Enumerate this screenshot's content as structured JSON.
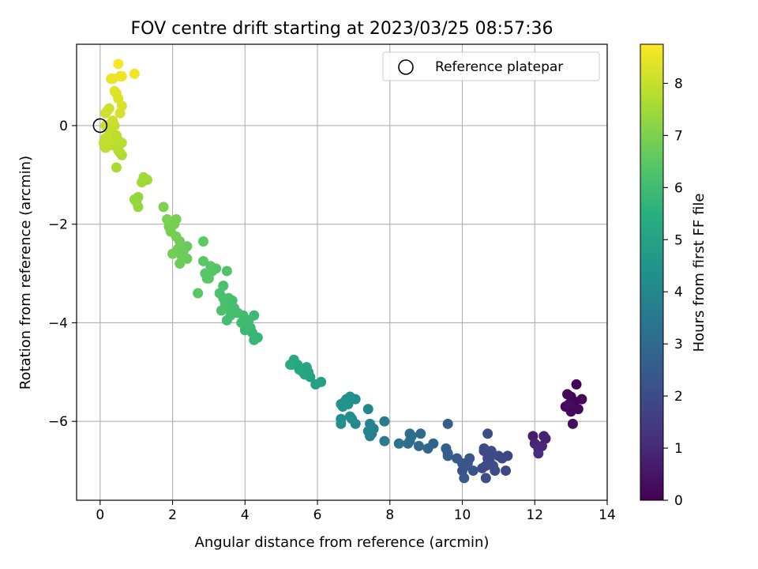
{
  "chart_data": {
    "type": "scatter",
    "title": "FOV centre drift starting at 2023/03/25 08:57:36",
    "xlabel": "Angular distance from reference (arcmin)",
    "ylabel": "Rotation from reference (arcmin)",
    "xlim": [
      -0.65,
      14
    ],
    "ylim": [
      -7.6,
      1.65
    ],
    "xticks": [
      0,
      2,
      4,
      6,
      8,
      10,
      12,
      14
    ],
    "yticks": [
      -6,
      -4,
      -2,
      0
    ],
    "grid": true,
    "legend": {
      "position": "upper right",
      "entries": [
        "Reference platepar"
      ]
    },
    "reference": {
      "x": 0,
      "y": 0,
      "label": "Reference platepar"
    },
    "colorbar": {
      "label": "Hours from first FF file",
      "min": 0,
      "max": 8.75,
      "ticks": [
        0,
        1,
        2,
        3,
        4,
        5,
        6,
        7,
        8
      ],
      "colormap": "viridis"
    },
    "points": [
      {
        "x": 13.0,
        "y": -5.5,
        "t": 0.1
      },
      {
        "x": 12.9,
        "y": -5.45,
        "t": 0.2
      },
      {
        "x": 13.1,
        "y": -5.6,
        "t": 0.1
      },
      {
        "x": 13.15,
        "y": -5.25,
        "t": 0.05
      },
      {
        "x": 13.3,
        "y": -5.55,
        "t": 0.1
      },
      {
        "x": 12.85,
        "y": -5.7,
        "t": 0.2
      },
      {
        "x": 13.0,
        "y": -5.8,
        "t": 0.15
      },
      {
        "x": 13.2,
        "y": -5.75,
        "t": 0.15
      },
      {
        "x": 13.05,
        "y": -6.05,
        "t": 0.3
      },
      {
        "x": 12.95,
        "y": -5.65,
        "t": 0.25
      },
      {
        "x": 11.95,
        "y": -6.3,
        "t": 0.7
      },
      {
        "x": 12.25,
        "y": -6.3,
        "t": 0.8
      },
      {
        "x": 12.0,
        "y": -6.45,
        "t": 0.9
      },
      {
        "x": 12.1,
        "y": -6.55,
        "t": 1.0
      },
      {
        "x": 12.3,
        "y": -6.35,
        "t": 0.85
      },
      {
        "x": 12.1,
        "y": -6.65,
        "t": 1.1
      },
      {
        "x": 12.2,
        "y": -6.5,
        "t": 0.95
      },
      {
        "x": 10.6,
        "y": -6.6,
        "t": 1.8
      },
      {
        "x": 10.7,
        "y": -6.75,
        "t": 1.85
      },
      {
        "x": 10.8,
        "y": -6.65,
        "t": 1.9
      },
      {
        "x": 10.65,
        "y": -6.9,
        "t": 1.9
      },
      {
        "x": 10.9,
        "y": -7.0,
        "t": 2.0
      },
      {
        "x": 11.0,
        "y": -6.7,
        "t": 1.95
      },
      {
        "x": 11.1,
        "y": -6.75,
        "t": 1.9
      },
      {
        "x": 11.2,
        "y": -7.0,
        "t": 1.85
      },
      {
        "x": 11.25,
        "y": -6.7,
        "t": 1.8
      },
      {
        "x": 10.55,
        "y": -6.95,
        "t": 2.0
      },
      {
        "x": 10.65,
        "y": -7.15,
        "t": 2.05
      },
      {
        "x": 10.7,
        "y": -6.25,
        "t": 2.0
      },
      {
        "x": 10.6,
        "y": -6.55,
        "t": 1.95
      },
      {
        "x": 10.75,
        "y": -6.8,
        "t": 2.0
      },
      {
        "x": 10.85,
        "y": -6.9,
        "t": 2.05
      },
      {
        "x": 10.8,
        "y": -6.6,
        "t": 2.0
      },
      {
        "x": 10.0,
        "y": -7.0,
        "t": 2.3
      },
      {
        "x": 10.05,
        "y": -7.15,
        "t": 2.35
      },
      {
        "x": 10.1,
        "y": -6.9,
        "t": 2.3
      },
      {
        "x": 10.2,
        "y": -6.75,
        "t": 2.3
      },
      {
        "x": 10.3,
        "y": -7.0,
        "t": 2.25
      },
      {
        "x": 10.0,
        "y": -6.85,
        "t": 2.3
      },
      {
        "x": 9.85,
        "y": -6.75,
        "t": 2.4
      },
      {
        "x": 10.15,
        "y": -6.85,
        "t": 2.35
      },
      {
        "x": 9.6,
        "y": -6.65,
        "t": 2.6
      },
      {
        "x": 9.55,
        "y": -6.55,
        "t": 2.6
      },
      {
        "x": 9.6,
        "y": -6.7,
        "t": 2.65
      },
      {
        "x": 9.6,
        "y": -6.05,
        "t": 2.7
      },
      {
        "x": 9.2,
        "y": -6.45,
        "t": 2.85
      },
      {
        "x": 9.05,
        "y": -6.55,
        "t": 2.9
      },
      {
        "x": 8.85,
        "y": -6.25,
        "t": 3.0
      },
      {
        "x": 8.8,
        "y": -6.5,
        "t": 3.0
      },
      {
        "x": 8.6,
        "y": -6.3,
        "t": 3.1
      },
      {
        "x": 8.55,
        "y": -6.25,
        "t": 3.15
      },
      {
        "x": 8.5,
        "y": -6.45,
        "t": 3.15
      },
      {
        "x": 8.25,
        "y": -6.45,
        "t": 3.3
      },
      {
        "x": 8.55,
        "y": -6.4,
        "t": 3.2
      },
      {
        "x": 7.85,
        "y": -6.0,
        "t": 3.6
      },
      {
        "x": 7.85,
        "y": -6.4,
        "t": 3.6
      },
      {
        "x": 7.5,
        "y": -6.25,
        "t": 3.8
      },
      {
        "x": 7.4,
        "y": -6.2,
        "t": 3.85
      },
      {
        "x": 7.55,
        "y": -6.15,
        "t": 3.8
      },
      {
        "x": 7.45,
        "y": -6.3,
        "t": 3.8
      },
      {
        "x": 7.4,
        "y": -5.75,
        "t": 3.95
      },
      {
        "x": 7.45,
        "y": -6.05,
        "t": 3.9
      },
      {
        "x": 7.05,
        "y": -6.05,
        "t": 4.1
      },
      {
        "x": 6.95,
        "y": -5.95,
        "t": 4.15
      },
      {
        "x": 6.65,
        "y": -5.95,
        "t": 4.3
      },
      {
        "x": 6.65,
        "y": -6.05,
        "t": 4.3
      },
      {
        "x": 6.9,
        "y": -5.9,
        "t": 4.2
      },
      {
        "x": 7.05,
        "y": -5.55,
        "t": 4.3
      },
      {
        "x": 6.9,
        "y": -5.5,
        "t": 4.35
      },
      {
        "x": 6.85,
        "y": -5.65,
        "t": 4.4
      },
      {
        "x": 6.75,
        "y": -5.6,
        "t": 4.45
      },
      {
        "x": 6.7,
        "y": -5.7,
        "t": 4.5
      },
      {
        "x": 6.8,
        "y": -5.55,
        "t": 4.4
      },
      {
        "x": 6.65,
        "y": -5.65,
        "t": 4.5
      },
      {
        "x": 6.1,
        "y": -5.2,
        "t": 4.9
      },
      {
        "x": 5.95,
        "y": -5.25,
        "t": 4.95
      },
      {
        "x": 5.8,
        "y": -5.1,
        "t": 5.0
      },
      {
        "x": 5.7,
        "y": -4.9,
        "t": 5.1
      },
      {
        "x": 5.6,
        "y": -5.0,
        "t": 5.1
      },
      {
        "x": 5.65,
        "y": -5.05,
        "t": 5.15
      },
      {
        "x": 5.5,
        "y": -4.95,
        "t": 5.2
      },
      {
        "x": 5.35,
        "y": -4.75,
        "t": 5.3
      },
      {
        "x": 5.3,
        "y": -4.85,
        "t": 5.3
      },
      {
        "x": 5.45,
        "y": -4.85,
        "t": 5.25
      },
      {
        "x": 5.25,
        "y": -4.85,
        "t": 5.35
      },
      {
        "x": 5.75,
        "y": -5.0,
        "t": 5.05
      },
      {
        "x": 4.35,
        "y": -4.3,
        "t": 5.75
      },
      {
        "x": 4.25,
        "y": -4.35,
        "t": 5.8
      },
      {
        "x": 4.2,
        "y": -4.2,
        "t": 5.8
      },
      {
        "x": 4.15,
        "y": -4.1,
        "t": 5.85
      },
      {
        "x": 4.25,
        "y": -3.85,
        "t": 5.9
      },
      {
        "x": 4.1,
        "y": -3.95,
        "t": 5.9
      },
      {
        "x": 4.05,
        "y": -4.05,
        "t": 5.95
      },
      {
        "x": 3.9,
        "y": -4.0,
        "t": 6.0
      },
      {
        "x": 3.95,
        "y": -3.85,
        "t": 6.0
      },
      {
        "x": 3.8,
        "y": -3.8,
        "t": 6.05
      },
      {
        "x": 3.7,
        "y": -3.7,
        "t": 6.05
      },
      {
        "x": 3.6,
        "y": -3.85,
        "t": 6.1
      },
      {
        "x": 3.55,
        "y": -3.7,
        "t": 6.1
      },
      {
        "x": 3.5,
        "y": -3.95,
        "t": 6.1
      },
      {
        "x": 3.45,
        "y": -3.6,
        "t": 6.15
      },
      {
        "x": 3.4,
        "y": -3.5,
        "t": 6.15
      },
      {
        "x": 3.35,
        "y": -3.75,
        "t": 6.2
      },
      {
        "x": 3.3,
        "y": -3.4,
        "t": 6.2
      },
      {
        "x": 3.4,
        "y": -3.25,
        "t": 6.2
      },
      {
        "x": 3.55,
        "y": -3.5,
        "t": 6.15
      },
      {
        "x": 3.65,
        "y": -3.55,
        "t": 6.1
      },
      {
        "x": 4.0,
        "y": -4.15,
        "t": 5.9
      },
      {
        "x": 3.5,
        "y": -2.95,
        "t": 6.3
      },
      {
        "x": 3.2,
        "y": -2.9,
        "t": 6.35
      },
      {
        "x": 3.1,
        "y": -2.95,
        "t": 6.4
      },
      {
        "x": 3.0,
        "y": -3.1,
        "t": 6.4
      },
      {
        "x": 2.9,
        "y": -3.0,
        "t": 6.45
      },
      {
        "x": 2.85,
        "y": -2.75,
        "t": 6.5
      },
      {
        "x": 2.95,
        "y": -3.1,
        "t": 6.45
      },
      {
        "x": 3.05,
        "y": -2.85,
        "t": 6.45
      },
      {
        "x": 2.85,
        "y": -2.35,
        "t": 6.55
      },
      {
        "x": 2.7,
        "y": -3.4,
        "t": 6.5
      },
      {
        "x": 2.4,
        "y": -2.45,
        "t": 6.7
      },
      {
        "x": 2.4,
        "y": -2.7,
        "t": 6.7
      },
      {
        "x": 2.25,
        "y": -2.65,
        "t": 6.75
      },
      {
        "x": 2.2,
        "y": -2.8,
        "t": 6.75
      },
      {
        "x": 2.15,
        "y": -2.5,
        "t": 6.8
      },
      {
        "x": 2.2,
        "y": -2.35,
        "t": 6.8
      },
      {
        "x": 2.1,
        "y": -2.25,
        "t": 6.85
      },
      {
        "x": 2.0,
        "y": -2.6,
        "t": 6.85
      },
      {
        "x": 1.95,
        "y": -2.15,
        "t": 6.9
      },
      {
        "x": 1.9,
        "y": -2.05,
        "t": 6.9
      },
      {
        "x": 1.85,
        "y": -1.9,
        "t": 6.95
      },
      {
        "x": 2.1,
        "y": -1.9,
        "t": 6.9
      },
      {
        "x": 2.05,
        "y": -2.0,
        "t": 6.9
      },
      {
        "x": 1.75,
        "y": -1.65,
        "t": 7.0
      },
      {
        "x": 2.3,
        "y": -2.55,
        "t": 6.75
      },
      {
        "x": 1.05,
        "y": -1.65,
        "t": 7.3
      },
      {
        "x": 1.0,
        "y": -1.55,
        "t": 7.35
      },
      {
        "x": 0.95,
        "y": -1.5,
        "t": 7.35
      },
      {
        "x": 1.05,
        "y": -1.45,
        "t": 7.3
      },
      {
        "x": 1.15,
        "y": -1.15,
        "t": 7.5
      },
      {
        "x": 1.2,
        "y": -1.05,
        "t": 7.5
      },
      {
        "x": 1.3,
        "y": -1.1,
        "t": 7.45
      },
      {
        "x": 0.45,
        "y": -0.85,
        "t": 7.6
      },
      {
        "x": 0.6,
        "y": -0.6,
        "t": 7.7
      },
      {
        "x": 0.55,
        "y": -0.55,
        "t": 7.7
      },
      {
        "x": 0.5,
        "y": -0.5,
        "t": 7.75
      },
      {
        "x": 0.6,
        "y": -0.35,
        "t": 7.8
      },
      {
        "x": 0.5,
        "y": -0.3,
        "t": 7.8
      },
      {
        "x": 0.4,
        "y": -0.35,
        "t": 7.85
      },
      {
        "x": 0.35,
        "y": -0.4,
        "t": 7.85
      },
      {
        "x": 0.25,
        "y": -0.3,
        "t": 7.9
      },
      {
        "x": 0.15,
        "y": -0.25,
        "t": 7.95
      },
      {
        "x": 0.15,
        "y": -0.45,
        "t": 7.9
      },
      {
        "x": 0.3,
        "y": -0.15,
        "t": 7.95
      },
      {
        "x": 0.2,
        "y": -0.05,
        "t": 8.0
      },
      {
        "x": 0.15,
        "y": 0.0,
        "t": 8.0
      },
      {
        "x": 0.3,
        "y": 0.05,
        "t": 8.0
      },
      {
        "x": 0.4,
        "y": 0.0,
        "t": 8.0
      },
      {
        "x": 0.35,
        "y": 0.1,
        "t": 8.05
      },
      {
        "x": 0.25,
        "y": -0.2,
        "t": 7.95
      },
      {
        "x": 0.1,
        "y": -0.35,
        "t": 7.9
      },
      {
        "x": 0.45,
        "y": -0.2,
        "t": 7.85
      },
      {
        "x": 0.15,
        "y": 0.25,
        "t": 8.1
      },
      {
        "x": 0.25,
        "y": 0.35,
        "t": 8.15
      },
      {
        "x": 0.2,
        "y": 0.3,
        "t": 8.15
      },
      {
        "x": 0.55,
        "y": 0.25,
        "t": 8.2
      },
      {
        "x": 0.6,
        "y": 0.4,
        "t": 8.25
      },
      {
        "x": 0.5,
        "y": 0.55,
        "t": 8.3
      },
      {
        "x": 0.45,
        "y": 0.65,
        "t": 8.3
      },
      {
        "x": 0.4,
        "y": 0.7,
        "t": 8.35
      },
      {
        "x": 0.35,
        "y": 0.95,
        "t": 8.45
      },
      {
        "x": 0.3,
        "y": 0.95,
        "t": 8.5
      },
      {
        "x": 0.55,
        "y": 1.0,
        "t": 8.55
      },
      {
        "x": 0.95,
        "y": 1.05,
        "t": 8.6
      },
      {
        "x": 0.6,
        "y": 1.0,
        "t": 8.55
      },
      {
        "x": 0.5,
        "y": 1.25,
        "t": 8.7
      }
    ]
  }
}
